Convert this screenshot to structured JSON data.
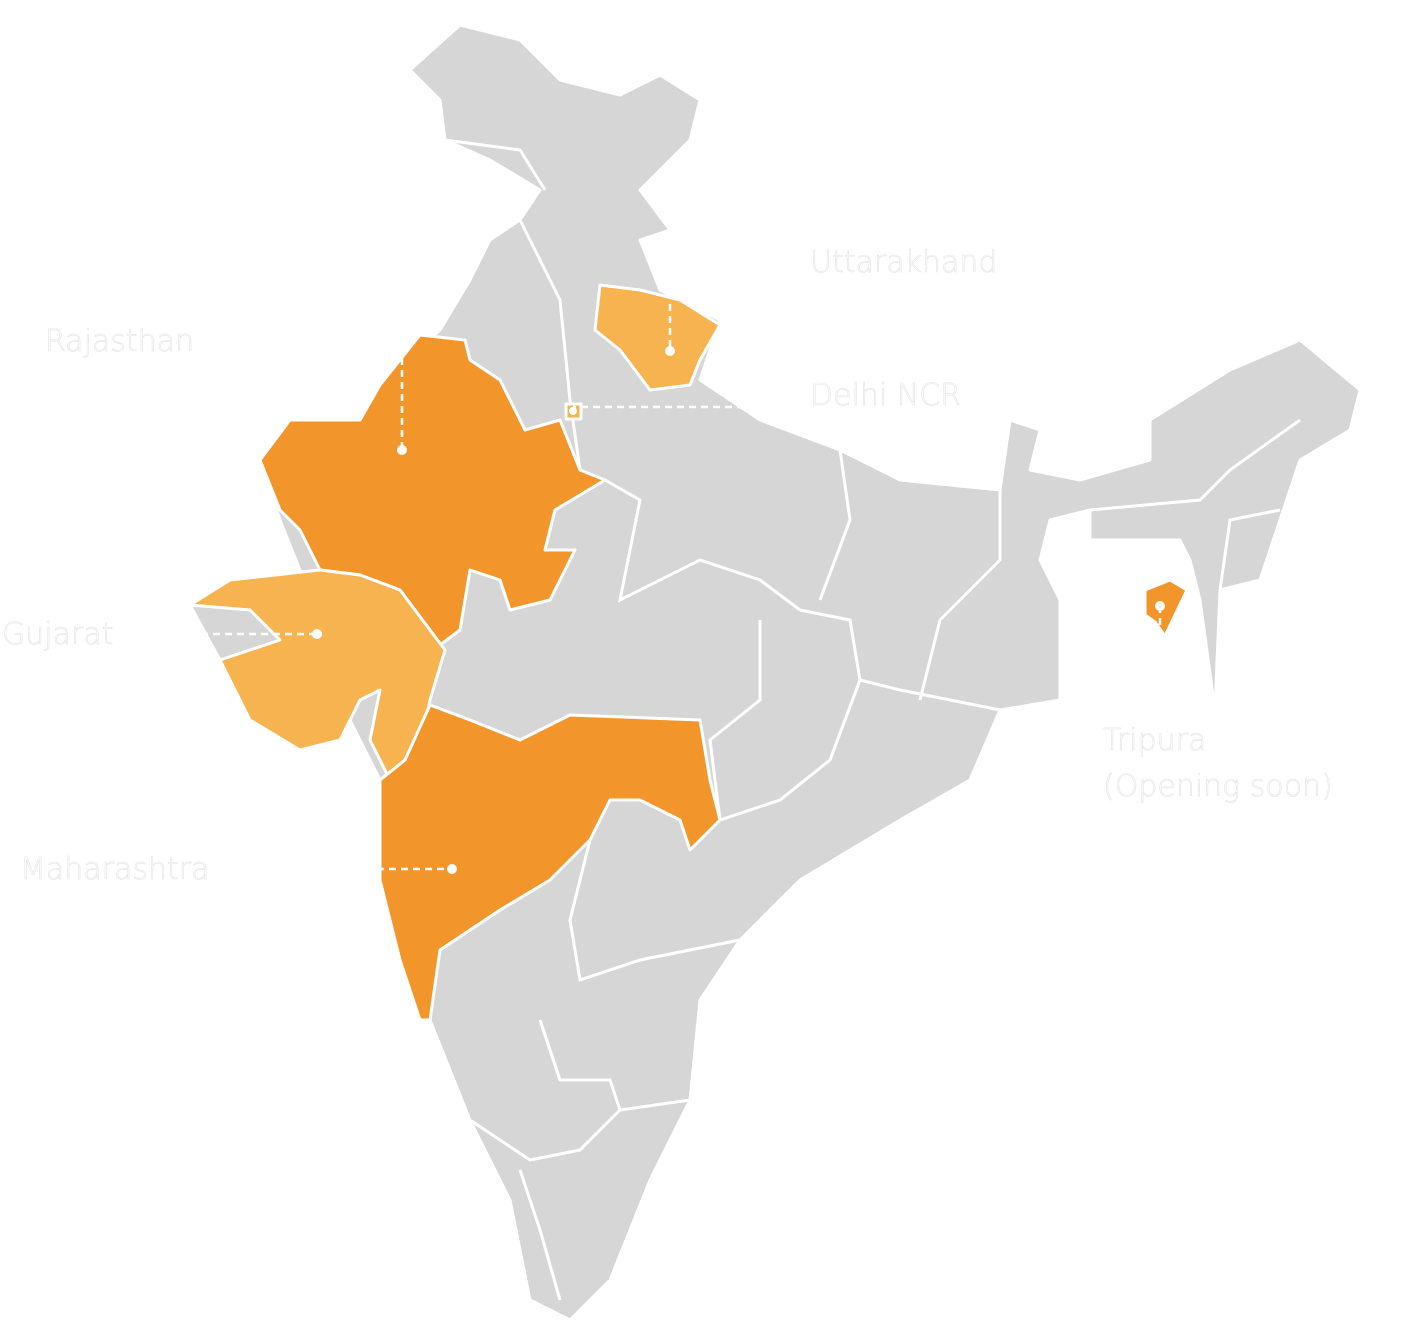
{
  "colors": {
    "base_state": "#d6d6d6",
    "operating": "#f2962c",
    "operating_light": "#f6b350",
    "label_text": "#ffffff"
  },
  "labels": {
    "uttarakhand": "Uttarakhand",
    "rajasthan": "Rajasthan",
    "delhi": "Delhi NCR",
    "gujarat": "Gujarat",
    "maharashtra": "Maharashtra",
    "tripura_line1": "Tripura",
    "tripura_line2": "(Opening soon)"
  }
}
